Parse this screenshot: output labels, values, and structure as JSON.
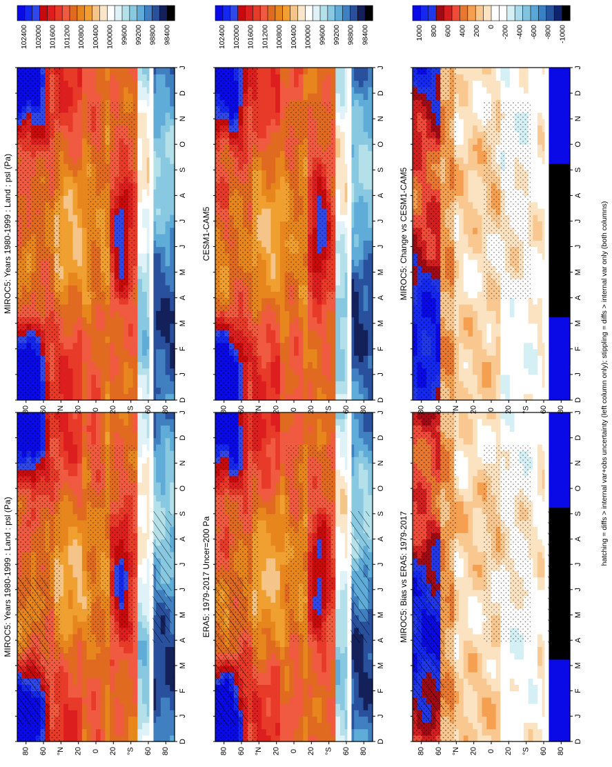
{
  "chart_data": [
    {
      "type": "heatmap",
      "id": "p-ul",
      "title": "MIROC5: Years 1980-1999 : Land : psl (Pa)",
      "months": [
        "D",
        "J",
        "F",
        "M",
        "A",
        "M",
        "J",
        "J",
        "A",
        "S",
        "O",
        "N",
        "D",
        "J"
      ],
      "lat_ticks": [
        "80",
        "60",
        "°N",
        "20",
        "0",
        "20",
        "°S",
        "60",
        "80"
      ],
      "colorbar_labels": [
        "102400",
        "102000",
        "101600",
        "101200",
        "100800",
        "100400",
        "100000",
        "99600",
        "99200",
        "98800",
        "98400"
      ],
      "scheme": "psl",
      "overlay": "hatch"
    },
    {
      "type": "heatmap",
      "id": "p-ur",
      "title": "MIROC5: Years 1980-1999 : Land : psl (Pa)",
      "months": [
        "D",
        "J",
        "F",
        "M",
        "A",
        "M",
        "J",
        "J",
        "A",
        "S",
        "O",
        "N",
        "D",
        "J"
      ],
      "lat_ticks": [
        "80",
        "60",
        "°N",
        "20",
        "0",
        "20",
        "°S",
        "60",
        "80"
      ],
      "colorbar_labels": [
        "102400",
        "102000",
        "101600",
        "101200",
        "100800",
        "100400",
        "100000",
        "99600",
        "99200",
        "98800",
        "98400"
      ],
      "scheme": "psl",
      "overlay": "stipple"
    },
    {
      "type": "heatmap",
      "id": "p-ml",
      "title": "ERA5: 1979-2017 Uncer=200 Pa",
      "months": [
        "D",
        "J",
        "F",
        "M",
        "A",
        "M",
        "J",
        "J",
        "A",
        "S",
        "O",
        "N",
        "D",
        "J"
      ],
      "lat_ticks": [
        "80",
        "60",
        "°N",
        "20",
        "0",
        "20",
        "°S",
        "60",
        "80"
      ],
      "colorbar_labels": [
        "102400",
        "102000",
        "101600",
        "101200",
        "100800",
        "100400",
        "100000",
        "99600",
        "99200",
        "98800",
        "98400"
      ],
      "scheme": "psl",
      "overlay": "hatch"
    },
    {
      "type": "heatmap",
      "id": "p-mr",
      "title": "CESM1-CAM5",
      "months": [
        "D",
        "J",
        "F",
        "M",
        "A",
        "M",
        "J",
        "J",
        "A",
        "S",
        "O",
        "N",
        "D",
        "J"
      ],
      "lat_ticks": [
        "80",
        "60",
        "°N",
        "20",
        "0",
        "20",
        "°S",
        "60",
        "80"
      ],
      "colorbar_labels": [
        "102400",
        "102000",
        "101600",
        "101200",
        "100800",
        "100400",
        "100000",
        "99600",
        "99200",
        "98800",
        "98400"
      ],
      "scheme": "psl",
      "overlay": "stipple"
    },
    {
      "type": "heatmap",
      "id": "p-ll",
      "title": "MIROC5: Bias vs ERA5: 1979-2017",
      "months": [
        "D",
        "J",
        "F",
        "M",
        "A",
        "M",
        "J",
        "J",
        "A",
        "S",
        "O",
        "N",
        "D",
        "J"
      ],
      "lat_ticks": [
        "80",
        "60",
        "°N",
        "20",
        "0",
        "20",
        "°S",
        "60",
        "80"
      ],
      "colorbar_labels": [
        "1000",
        "800",
        "600",
        "400",
        "200",
        "0",
        "-200",
        "-400",
        "-600",
        "-800",
        "-1000"
      ],
      "scheme": "diff",
      "overlay": "hatch"
    },
    {
      "type": "heatmap",
      "id": "p-lr",
      "title": "MIROC5: Change vs CESM1-CAM5",
      "months": [
        "D",
        "J",
        "F",
        "M",
        "A",
        "M",
        "J",
        "J",
        "A",
        "S",
        "O",
        "N",
        "D",
        "J"
      ],
      "lat_ticks": [
        "80",
        "60",
        "°N",
        "20",
        "0",
        "20",
        "°S",
        "60",
        "80"
      ],
      "colorbar_labels": [
        "1000",
        "800",
        "600",
        "400",
        "200",
        "0",
        "-200",
        "-400",
        "-600",
        "-800",
        "-1000"
      ],
      "scheme": "diff",
      "overlay": "stipple"
    }
  ],
  "footnote": "hatching = diffs > internal var+obs uncertainty (left column only); stippling = diffs > internal var only (both columns)",
  "colors": {
    "psl_scale": [
      "#0a0ae6",
      "#1428f0",
      "#3048e8",
      "#c80a0a",
      "#dc1e1e",
      "#e83a28",
      "#f05a40",
      "#e06a20",
      "#e8861e",
      "#f0a030",
      "#f5c488",
      "#fae6c8",
      "#ffffff",
      "#dff2f7",
      "#b4e0ea",
      "#88c8e0",
      "#60acd8",
      "#4080c0",
      "#28509c",
      "#14205a",
      "#000000"
    ],
    "diff_scale": [
      "#0a0ae6",
      "#1428f0",
      "#2038e8",
      "#a00a14",
      "#d21e1e",
      "#f04a3a",
      "#e87830",
      "#f5a050",
      "#f8c890",
      "#fbe2c0",
      "#ffffff",
      "#ffffff",
      "#d4f0f4",
      "#a8dcec",
      "#80c4e0",
      "#5aa6d6",
      "#3a80c4",
      "#2454a0",
      "#10246c",
      "#000000"
    ]
  }
}
